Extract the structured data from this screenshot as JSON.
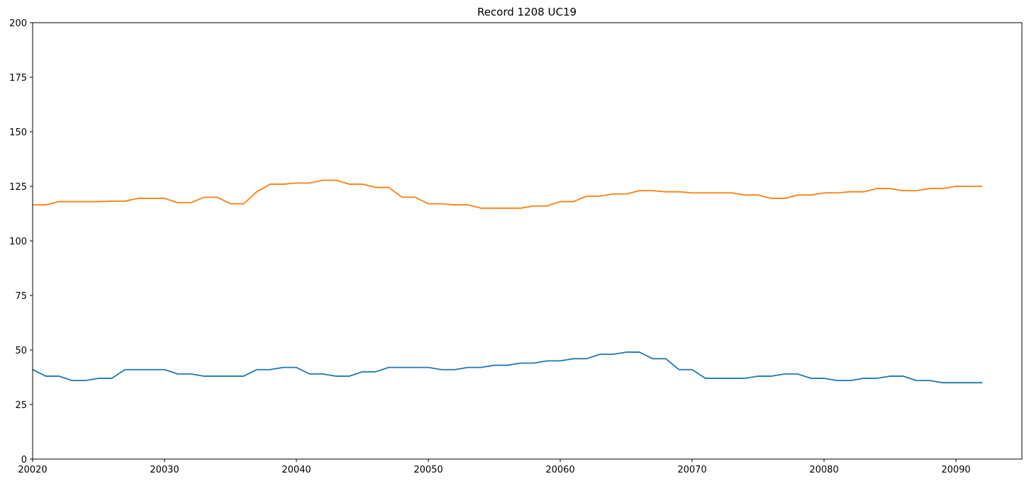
{
  "chart_data": {
    "type": "line",
    "title": "Record 1208 UC19",
    "xlabel": "",
    "ylabel": "",
    "xlim": [
      20020,
      20095
    ],
    "ylim": [
      0,
      200
    ],
    "xticks": [
      20020,
      20030,
      20040,
      20050,
      20060,
      20070,
      20080,
      20090
    ],
    "yticks": [
      0,
      25,
      50,
      75,
      100,
      125,
      150,
      175,
      200
    ],
    "grid": false,
    "legend": "none",
    "x": [
      20020,
      20021,
      20022,
      20023,
      20024,
      20025,
      20026,
      20027,
      20028,
      20029,
      20030,
      20031,
      20032,
      20033,
      20034,
      20035,
      20036,
      20037,
      20038,
      20039,
      20040,
      20041,
      20042,
      20043,
      20044,
      20045,
      20046,
      20047,
      20048,
      20049,
      20050,
      20051,
      20052,
      20053,
      20054,
      20055,
      20056,
      20057,
      20058,
      20059,
      20060,
      20061,
      20062,
      20063,
      20064,
      20065,
      20066,
      20067,
      20068,
      20069,
      20070,
      20071,
      20072,
      20073,
      20074,
      20075,
      20076,
      20077,
      20078,
      20079,
      20080,
      20081,
      20082,
      20083,
      20084,
      20085,
      20086,
      20087,
      20088,
      20089,
      20090,
      20091,
      20092
    ],
    "series": [
      {
        "color": "#1f77b4",
        "values": [
          41,
          38,
          38,
          36,
          36,
          37,
          37,
          41,
          41,
          41,
          41,
          39,
          39,
          38,
          38,
          38,
          38,
          41,
          41,
          42,
          42,
          39,
          39,
          38,
          38,
          40,
          40,
          42,
          42,
          42,
          42,
          41,
          41,
          42,
          42,
          43,
          43,
          44,
          44,
          45,
          45,
          46,
          46,
          48,
          48,
          49,
          49,
          46,
          46,
          41,
          41,
          37,
          37,
          37,
          37,
          38,
          38,
          39,
          39,
          37,
          37,
          36,
          36,
          37,
          37,
          38,
          38,
          36,
          36,
          35,
          35,
          35,
          35
        ]
      },
      {
        "color": "#ff7f0e",
        "values": [
          116.5,
          116.5,
          118,
          118,
          118,
          118,
          118.2,
          118.2,
          119.5,
          119.5,
          119.5,
          117.5,
          117.5,
          120,
          120,
          117,
          117,
          122.5,
          126,
          126,
          126.5,
          126.5,
          127.8,
          127.8,
          126,
          126,
          124.5,
          124.5,
          120,
          120,
          117,
          117,
          116.5,
          116.5,
          115,
          115,
          115,
          115,
          116,
          116,
          118,
          118,
          120.5,
          120.5,
          121.5,
          121.5,
          123,
          123,
          122.5,
          122.5,
          122,
          122,
          122,
          122,
          121,
          121,
          119.5,
          119.5,
          121,
          121,
          122,
          122,
          122.5,
          122.5,
          124,
          124,
          123,
          123,
          124,
          124,
          125,
          125,
          125
        ]
      }
    ]
  }
}
